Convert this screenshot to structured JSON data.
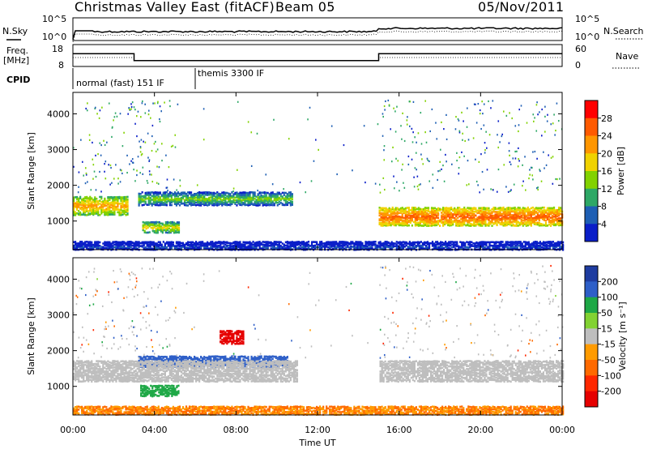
{
  "header": {
    "title": "Christmas Valley East (fitACF)",
    "beam": "Beam 05",
    "date": "05/Nov/2011"
  },
  "noise_panel": {
    "left_label": "N.Sky",
    "right_label": "N.Search",
    "left_ticks": [
      "10^5",
      "10^0"
    ],
    "right_ticks": [
      "10^5",
      "10^0"
    ]
  },
  "freq_panel": {
    "left_label_1": "Freq.",
    "left_label_2": "[MHz]",
    "right_label": "Nave",
    "left_ticks": [
      "18",
      "8"
    ],
    "right_ticks": [
      "60",
      "0"
    ],
    "freq_steps": [
      {
        "start_h": 0.0,
        "end_h": 3.0,
        "freq_mhz": 14.5
      },
      {
        "start_h": 3.0,
        "end_h": 15.0,
        "freq_mhz": 9.8
      },
      {
        "start_h": 15.0,
        "end_h": 24.0,
        "freq_mhz": 14.5
      }
    ]
  },
  "cpid": {
    "label": "CPID",
    "modes": [
      {
        "start_h": 0.0,
        "end_h": 6.0,
        "name": "normal (fast) 151 IF"
      },
      {
        "start_h": 6.0,
        "end_h": 24.0,
        "name": "themis 3300 IF"
      }
    ]
  },
  "power_panel": {
    "ylabel": "Slant Range [km]",
    "yticks": [
      1000,
      2000,
      3000,
      4000
    ],
    "ylim": [
      200,
      4600
    ],
    "colorbar_label": "Power [dB]",
    "colorbar_ticks": [
      28,
      24,
      20,
      16,
      12,
      8,
      4
    ],
    "colorbar_colors": [
      "#ff0000",
      "#ff5a00",
      "#ff9600",
      "#f0d200",
      "#82d200",
      "#2ea866",
      "#1e5fb4",
      "#0a1ec8"
    ]
  },
  "velocity_panel": {
    "ylabel": "Slant Range [km]",
    "yticks": [
      1000,
      2000,
      3000,
      4000
    ],
    "ylim": [
      200,
      4600
    ],
    "colorbar_label": "Velocity [m s⁻¹]",
    "colorbar_ticks": [
      200,
      100,
      50,
      15,
      -15,
      -50,
      -100,
      -200
    ],
    "colorbar_colors": [
      "#1e3ca0",
      "#2e5fc8",
      "#1ea846",
      "#82d232",
      "#bebebe",
      "#ff9b00",
      "#ff6a00",
      "#ff2800",
      "#e60000"
    ]
  },
  "x_axis": {
    "label": "Time UT",
    "ticks": [
      "00:00",
      "04:00",
      "08:00",
      "12:00",
      "16:00",
      "20:00",
      "00:00"
    ],
    "range_h": [
      0,
      24
    ]
  },
  "chart_data": {
    "type": "heatmap",
    "title": "Christmas Valley East (fitACF)",
    "xlabel": "Time UT",
    "ylabel": "Slant Range [km]",
    "xlim_hours": [
      0,
      24
    ],
    "ylim_km": [
      200,
      4600
    ],
    "power_bands": [
      {
        "t0": 0.0,
        "t1": 2.7,
        "r_center": 1450,
        "r_half": 200,
        "db": 22
      },
      {
        "t0": 3.2,
        "t1": 10.8,
        "r_center": 1650,
        "r_half": 130,
        "db": 14
      },
      {
        "t0": 3.4,
        "t1": 5.2,
        "r_center": 850,
        "r_half": 100,
        "db": 18
      },
      {
        "t0": 15.0,
        "t1": 24.0,
        "r_center": 1150,
        "r_half": 180,
        "db": 26
      },
      {
        "t0": 0.0,
        "t1": 24.0,
        "r_center": 300,
        "r_half": 80,
        "db": 5
      }
    ],
    "velocity_bands": [
      {
        "t0": 3.2,
        "t1": 10.5,
        "r_center": 1720,
        "r_half": 110,
        "v": 100
      },
      {
        "t0": 3.3,
        "t1": 5.2,
        "r_center": 900,
        "r_half": 120,
        "v": 50
      },
      {
        "t0": 7.2,
        "t1": 8.4,
        "r_center": 2400,
        "r_half": 150,
        "v": -200
      },
      {
        "t0": 0.0,
        "t1": 24.0,
        "r_center": 1450,
        "r_half": 250,
        "v": 0
      },
      {
        "t0": 0.0,
        "t1": 24.0,
        "r_center": 350,
        "r_half": 80,
        "v": -50
      }
    ]
  }
}
